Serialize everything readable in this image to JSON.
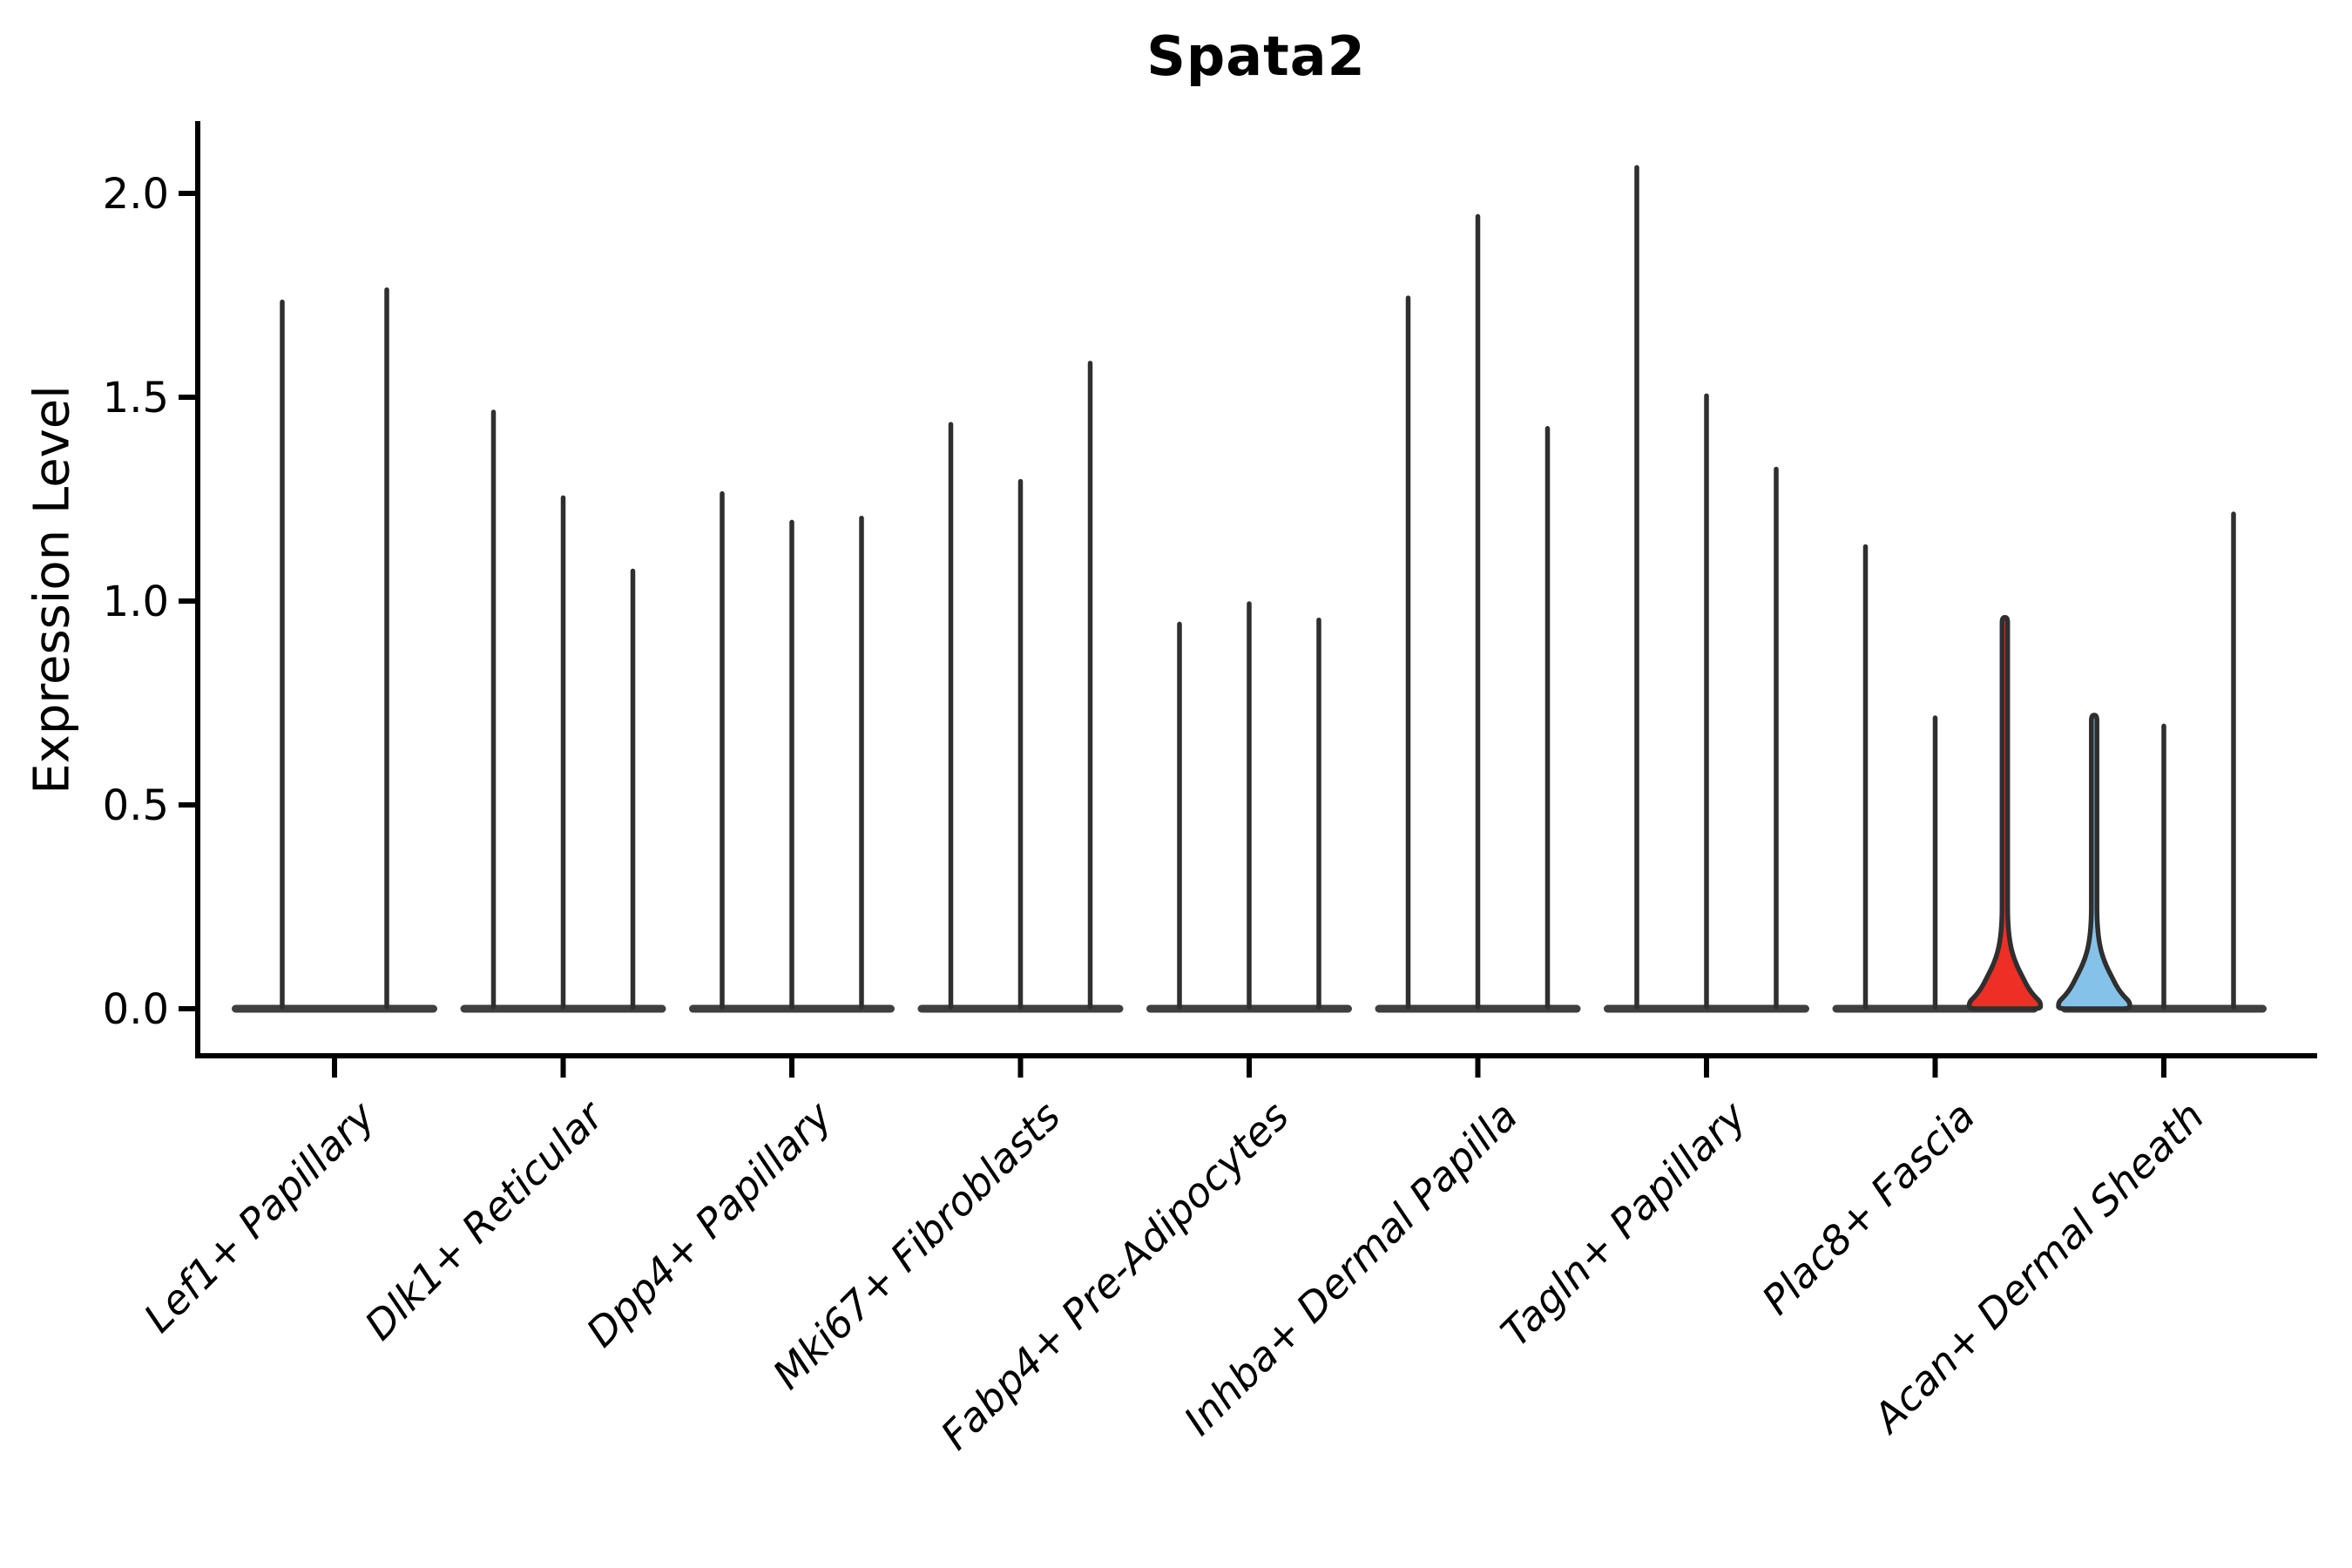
{
  "figure": {
    "title": "Spata2",
    "ylabel": "Expression Level"
  },
  "chart_data": {
    "type": "violin",
    "title": "Spata2",
    "xlabel": "",
    "ylabel": "Expression Level",
    "ylim": [
      0,
      2.17
    ],
    "yticks": [
      0.0,
      0.5,
      1.0,
      1.5,
      2.0
    ],
    "ytick_labels": [
      "0.0",
      "0.5",
      "1.0",
      "1.5",
      "2.0"
    ],
    "grid": false,
    "legend": null,
    "x_tick_rotation_deg": 45,
    "categories": [
      "Lef1+ Papillary",
      "Dlk1+ Reticular",
      "Dpp4+ Papillary",
      "Mki67+ Fibroblasts",
      "Fabp4+ Pre-Adipocytes",
      "Inhba+ Dermal Papilla",
      "Tagln+ Papillary",
      "Plac8+ Fascia",
      "Acan+ Dermal Sheath"
    ],
    "groups": [
      {
        "category": "Lef1+ Papillary",
        "violins": [
          {
            "max": 1.74,
            "fill": null,
            "bulge": false
          },
          {
            "max": 1.77,
            "fill": null,
            "bulge": false
          }
        ]
      },
      {
        "category": "Dlk1+ Reticular",
        "violins": [
          {
            "max": 1.47,
            "fill": null,
            "bulge": false
          },
          {
            "max": 1.26,
            "fill": null,
            "bulge": false
          },
          {
            "max": 1.08,
            "fill": null,
            "bulge": false
          }
        ]
      },
      {
        "category": "Dpp4+ Papillary",
        "violins": [
          {
            "max": 1.27,
            "fill": null,
            "bulge": false
          },
          {
            "max": 1.2,
            "fill": null,
            "bulge": false
          },
          {
            "max": 1.21,
            "fill": null,
            "bulge": false
          }
        ]
      },
      {
        "category": "Mki67+ Fibroblasts",
        "violins": [
          {
            "max": 1.44,
            "fill": null,
            "bulge": false
          },
          {
            "max": 1.3,
            "fill": null,
            "bulge": false
          },
          {
            "max": 1.59,
            "fill": null,
            "bulge": false
          }
        ]
      },
      {
        "category": "Fabp4+ Pre-Adipocytes",
        "violins": [
          {
            "max": 0.95,
            "fill": null,
            "bulge": false
          },
          {
            "max": 1.0,
            "fill": null,
            "bulge": false
          },
          {
            "max": 0.96,
            "fill": null,
            "bulge": false
          }
        ]
      },
      {
        "category": "Inhba+ Dermal Papilla",
        "violins": [
          {
            "max": 1.75,
            "fill": null,
            "bulge": false
          },
          {
            "max": 1.95,
            "fill": null,
            "bulge": false
          },
          {
            "max": 1.43,
            "fill": null,
            "bulge": false
          }
        ]
      },
      {
        "category": "Tagln+ Papillary",
        "violins": [
          {
            "max": 2.07,
            "fill": null,
            "bulge": false
          },
          {
            "max": 1.51,
            "fill": null,
            "bulge": false
          },
          {
            "max": 1.33,
            "fill": null,
            "bulge": false
          }
        ]
      },
      {
        "category": "Plac8+ Fascia",
        "violins": [
          {
            "max": 1.14,
            "fill": null,
            "bulge": false
          },
          {
            "max": 0.72,
            "fill": null,
            "bulge": false
          },
          {
            "max": 0.96,
            "fill": "#ee2f26",
            "bulge": true
          }
        ]
      },
      {
        "category": "Acan+ Dermal Sheath",
        "violins": [
          {
            "max": 0.72,
            "fill": "#85c2e9",
            "bulge": true
          },
          {
            "max": 0.7,
            "fill": null,
            "bulge": false
          },
          {
            "max": 1.22,
            "fill": null,
            "bulge": false
          }
        ]
      }
    ],
    "style": {
      "violin_stroke": "#2f2f2f",
      "baseline_color": "#3f3f3f",
      "axis_color": "#000000",
      "background": "#ffffff",
      "highlight_red": "#ee2f26",
      "highlight_blue": "#85c2e9"
    },
    "note": "All distributions are concentrated at 0 (thin spike violins); only the red and blue highlighted violins show a visible density bulge near 0."
  }
}
